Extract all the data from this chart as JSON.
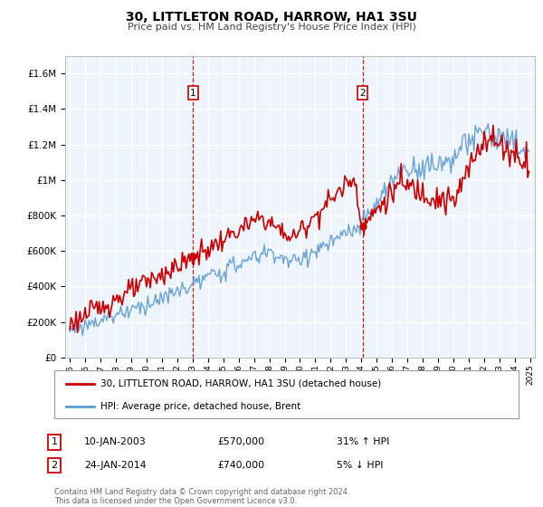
{
  "title": "30, LITTLETON ROAD, HARROW, HA1 3SU",
  "subtitle": "Price paid vs. HM Land Registry's House Price Index (HPI)",
  "ylabel_ticks": [
    "£0",
    "£200K",
    "£400K",
    "£600K",
    "£800K",
    "£1M",
    "£1.2M",
    "£1.4M",
    "£1.6M"
  ],
  "ytick_values": [
    0,
    200000,
    400000,
    600000,
    800000,
    1000000,
    1200000,
    1400000,
    1600000
  ],
  "ylim": [
    0,
    1700000
  ],
  "xlim_start": 1994.7,
  "xlim_end": 2025.3,
  "plot_bg_color": "#eef4fb",
  "grid_color": "#ffffff",
  "sale1_x": 2003.04,
  "sale1_y": 570000,
  "sale2_x": 2014.07,
  "sale2_y": 740000,
  "sale_color": "#cc0000",
  "hpi_color": "#5b9bd5",
  "legend_label_sale": "30, LITTLETON ROAD, HARROW, HA1 3SU (detached house)",
  "legend_label_hpi": "HPI: Average price, detached house, Brent",
  "annotation1_label": "1",
  "annotation1_date": "10-JAN-2003",
  "annotation1_price": "£570,000",
  "annotation1_hpi": "31% ↑ HPI",
  "annotation2_label": "2",
  "annotation2_date": "24-JAN-2014",
  "annotation2_price": "£740,000",
  "annotation2_hpi": "5% ↓ HPI",
  "footer": "Contains HM Land Registry data © Crown copyright and database right 2024.\nThis data is licensed under the Open Government Licence v3.0.",
  "xtick_years": [
    1995,
    1996,
    1997,
    1998,
    1999,
    2000,
    2001,
    2002,
    2003,
    2004,
    2005,
    2006,
    2007,
    2008,
    2009,
    2010,
    2011,
    2012,
    2013,
    2014,
    2015,
    2016,
    2017,
    2018,
    2019,
    2020,
    2021,
    2022,
    2023,
    2024,
    2025
  ]
}
